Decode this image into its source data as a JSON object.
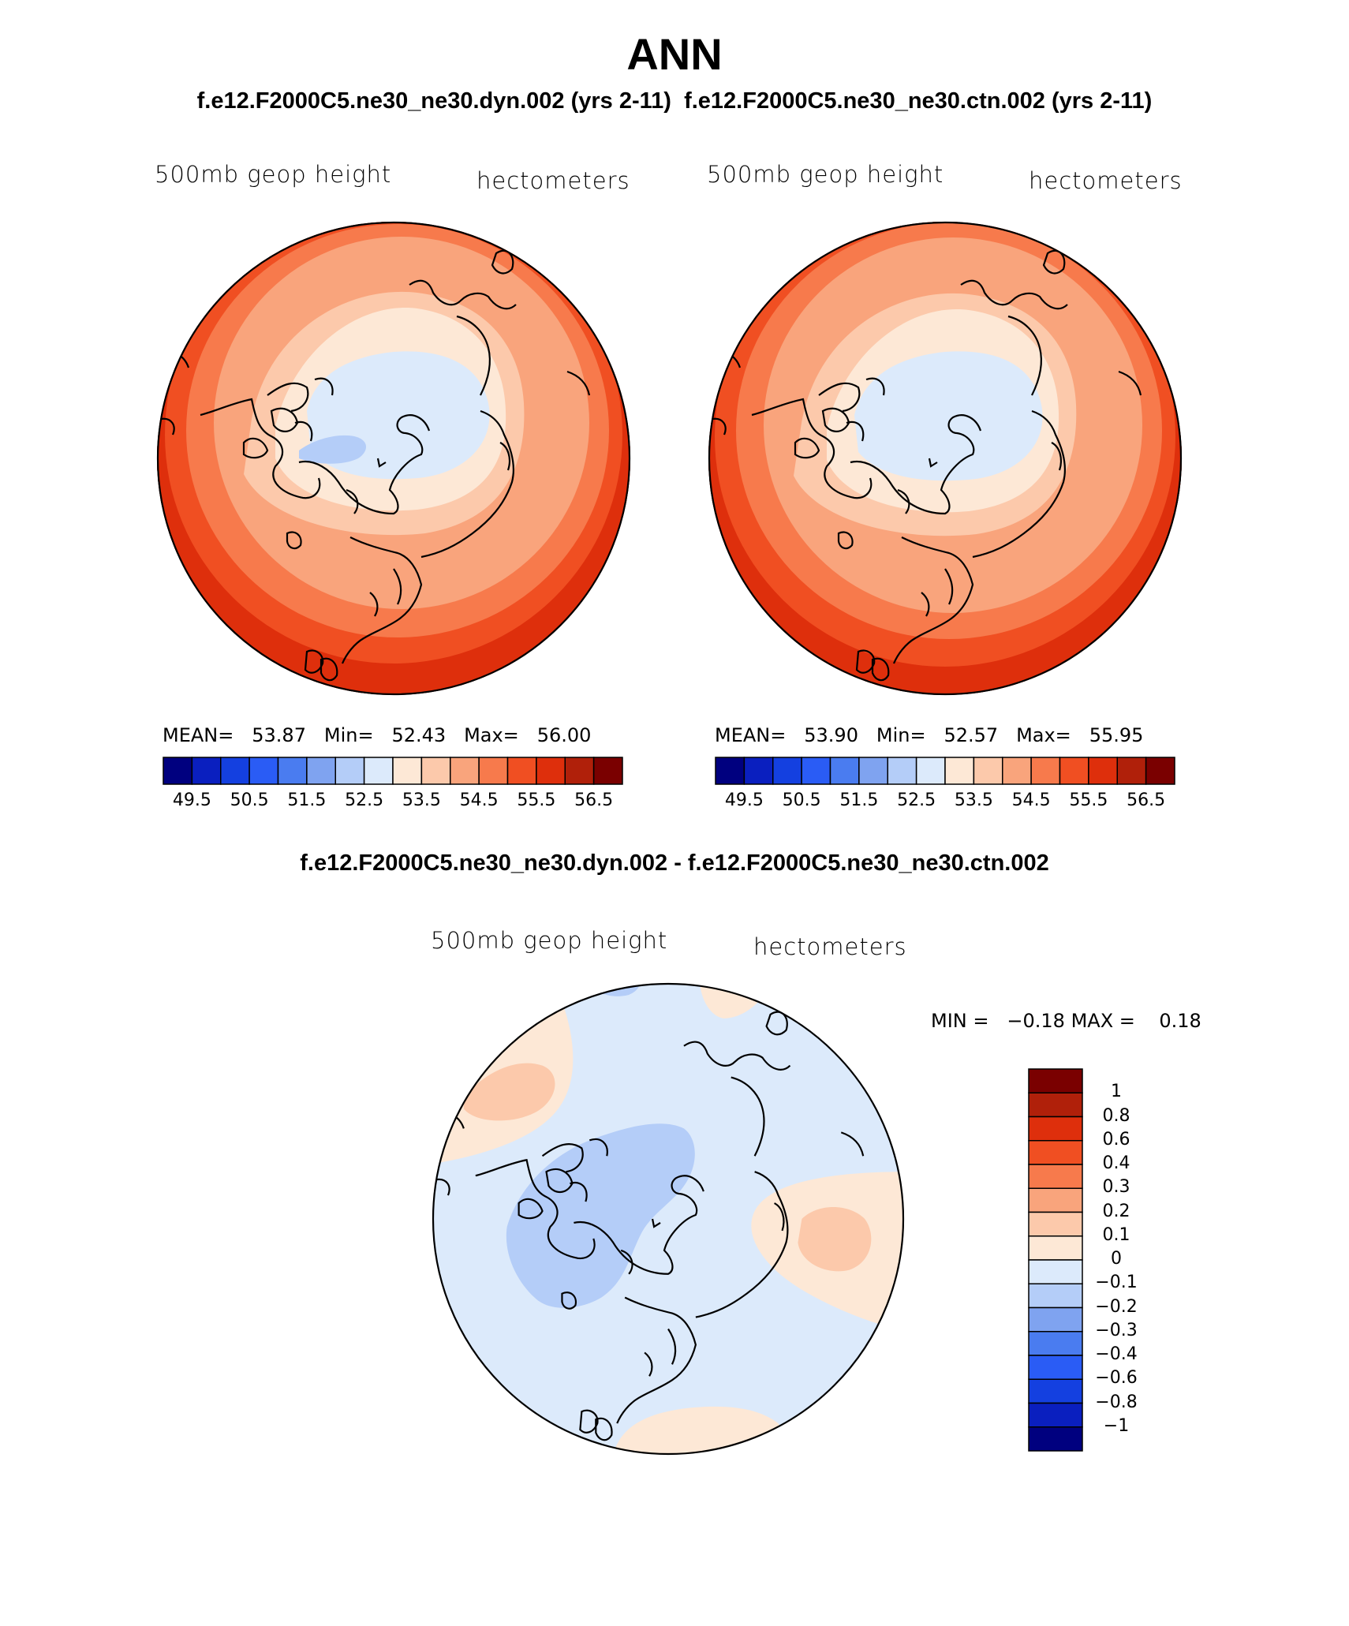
{
  "page": {
    "title": "ANN",
    "subtitle_left": "f.e12.F2000C5.ne30_ne30.dyn.002 (yrs 2-11)",
    "subtitle_right": "f.e12.F2000C5.ne30_ne30.ctn.002 (yrs 2-11)",
    "diff_title": "f.e12.F2000C5.ne30_ne30.dyn.002 - f.e12.F2000C5.ne30_ne30.ctn.002"
  },
  "panels": [
    {
      "variable": "500mb geop height",
      "units": "hectometers",
      "mean_label": "MEAN=",
      "mean": "53.87",
      "min_label": "Min=",
      "min": "52.43",
      "max_label": "Max=",
      "max": "56.00",
      "colorbar_ticks": [
        "49.5",
        "50.5",
        "51.5",
        "52.5",
        "53.5",
        "54.5",
        "55.5",
        "56.5"
      ]
    },
    {
      "variable": "500mb geop height",
      "units": "hectometers",
      "mean_label": "MEAN=",
      "mean": "53.90",
      "min_label": "Min=",
      "min": "52.57",
      "max_label": "Max=",
      "max": "55.95",
      "colorbar_ticks": [
        "49.5",
        "50.5",
        "51.5",
        "52.5",
        "53.5",
        "54.5",
        "55.5",
        "56.5"
      ]
    }
  ],
  "diff_panel": {
    "variable": "500mb geop height",
    "units": "hectometers",
    "min_label": "MIN =",
    "min": "−0.18",
    "max_label": "MAX =",
    "max": "0.18",
    "colorbar_ticks": [
      "1",
      "0.8",
      "0.6",
      "0.4",
      "0.3",
      "0.2",
      "0.1",
      "0",
      "−0.1",
      "−0.2",
      "−0.3",
      "−0.4",
      "−0.6",
      "−0.8",
      "−1"
    ]
  },
  "colors": {
    "abs_scale": [
      "#00007f",
      "#0a1fbf",
      "#1440e0",
      "#2a5cf5",
      "#4a7cf0",
      "#7fa3f0",
      "#b4cdf8",
      "#dceafb",
      "#fde8d6",
      "#fcc9ab",
      "#f9a47c",
      "#f77a4c",
      "#f04f22",
      "#de2f0c",
      "#b0200a",
      "#7a0000"
    ],
    "diff_scale": [
      "#7a0000",
      "#b0200a",
      "#de2f0c",
      "#f04f22",
      "#f77a4c",
      "#f9a47c",
      "#fcc9ab",
      "#fde8d6",
      "#dceafb",
      "#b4cdf8",
      "#7fa3f0",
      "#4a7cf0",
      "#2a5cf5",
      "#1440e0",
      "#0a1fbf",
      "#00007f"
    ]
  }
}
